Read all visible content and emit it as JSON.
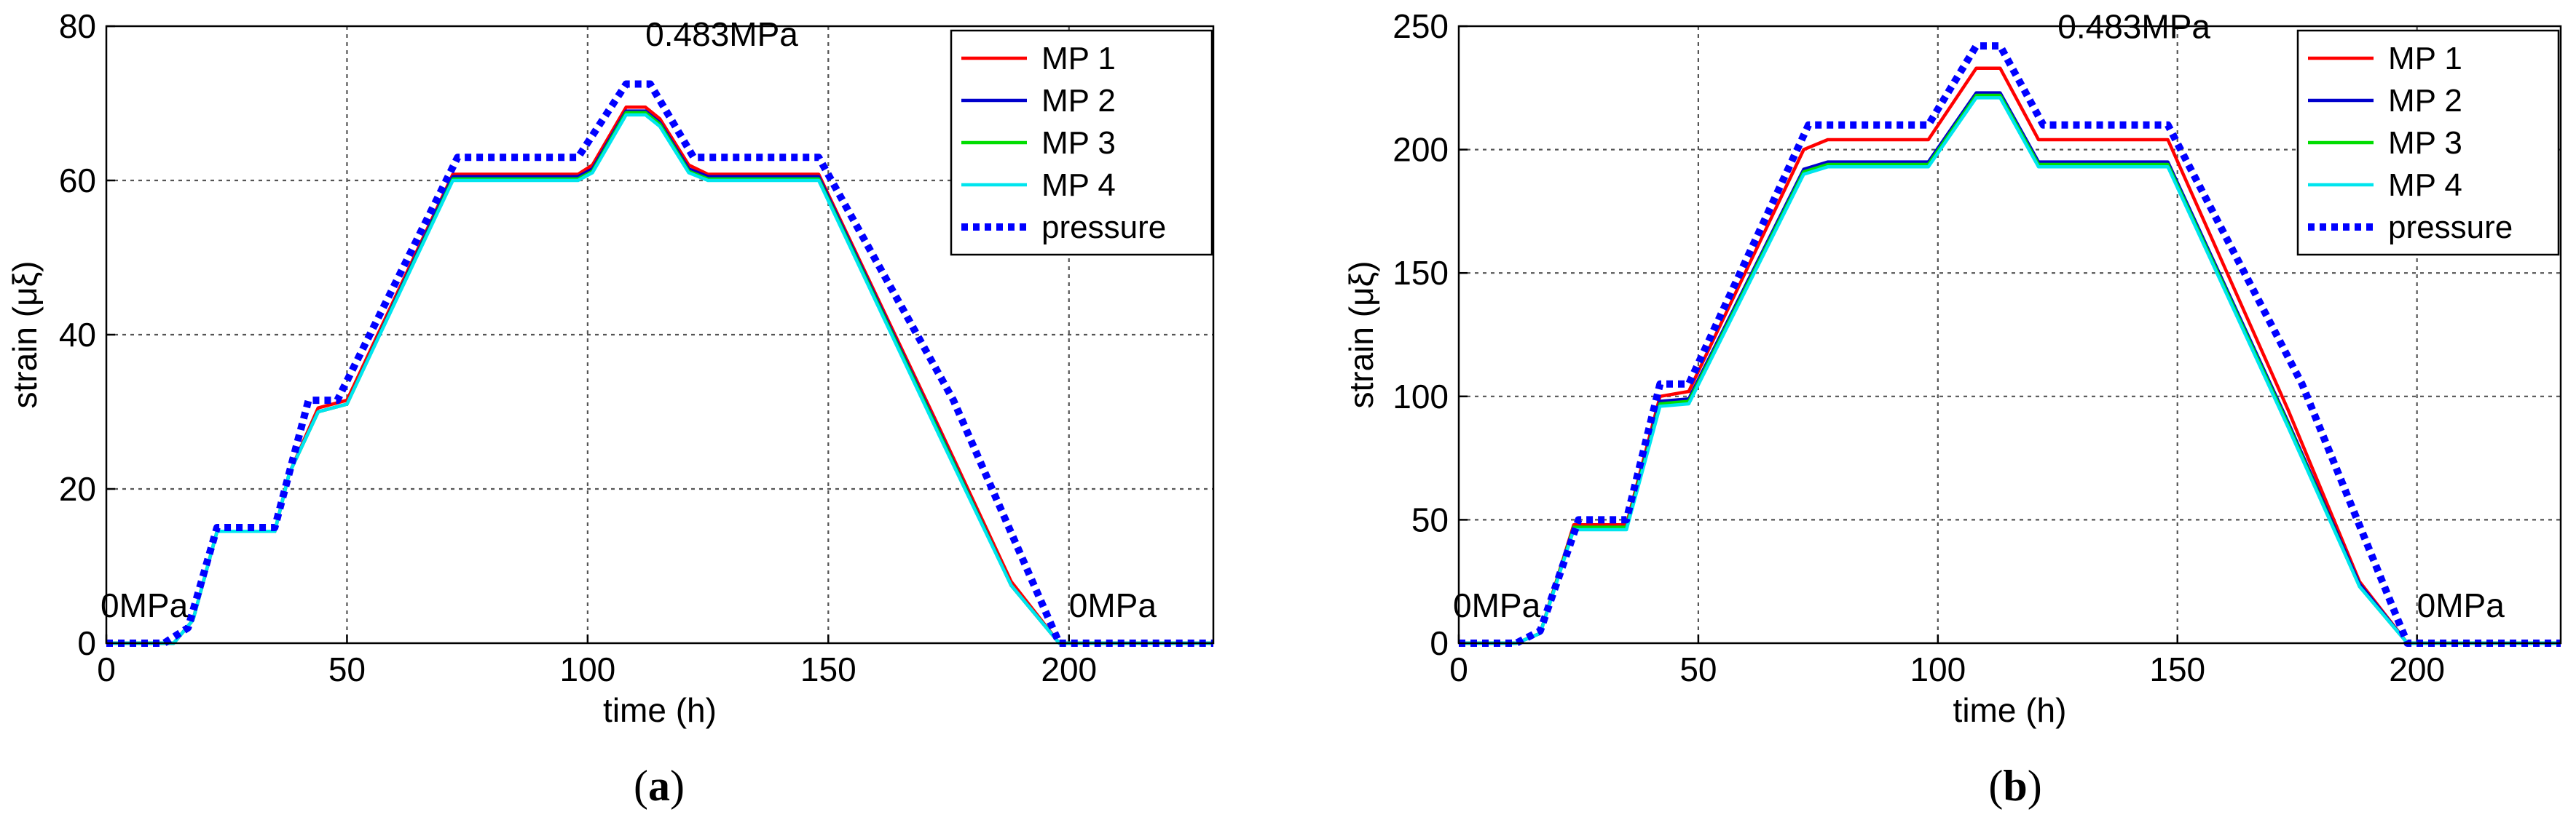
{
  "chart_data": [
    {
      "type": "line",
      "caption_prefix": "(",
      "caption_letter": "a",
      "caption_suffix": ")",
      "xlabel": "time (h)",
      "ylabel": "strain (μξ)",
      "xlim": [
        0,
        230
      ],
      "ylim": [
        0,
        80
      ],
      "xticks": [
        0,
        50,
        100,
        150,
        200
      ],
      "yticks": [
        0,
        20,
        40,
        60,
        80
      ],
      "grid": true,
      "legend_position": "top-right",
      "annotations": [
        {
          "text": "0MPa",
          "x": 0,
          "y": 0
        },
        {
          "text": "0.483MPa",
          "x": 112,
          "y": 72
        },
        {
          "text": "0MPa",
          "x": 200,
          "y": 0
        }
      ],
      "series": [
        {
          "name": "MP 1",
          "color": "#ff0000",
          "style": "solid",
          "x": [
            0,
            14,
            18,
            23,
            35,
            38,
            44,
            50,
            72,
            98,
            101,
            108,
            112,
            115,
            121,
            125,
            148,
            173,
            188,
            198,
            230
          ],
          "y": [
            0,
            0,
            3,
            14.5,
            14.5,
            22,
            30.5,
            31.5,
            60.8,
            60.8,
            62,
            69.5,
            69.5,
            68,
            62,
            60.8,
            60.8,
            28,
            8,
            0,
            0
          ]
        },
        {
          "name": "MP 2",
          "color": "#0000cc",
          "style": "solid",
          "x": [
            0,
            14,
            18,
            23,
            35,
            38,
            44,
            50,
            72,
            98,
            101,
            108,
            112,
            115,
            121,
            125,
            148,
            173,
            188,
            198,
            230
          ],
          "y": [
            0,
            0,
            3,
            14.5,
            14.5,
            22,
            30,
            31,
            60.5,
            60.5,
            61.5,
            69,
            69,
            67.5,
            61.5,
            60.5,
            60.5,
            27.5,
            7.5,
            0,
            0
          ]
        },
        {
          "name": "MP 3",
          "color": "#00dd00",
          "style": "solid",
          "x": [
            0,
            14,
            18,
            23,
            35,
            38,
            44,
            50,
            72,
            98,
            101,
            108,
            112,
            115,
            121,
            125,
            148,
            173,
            188,
            198,
            230
          ],
          "y": [
            0,
            0,
            3,
            14.5,
            14.5,
            22,
            30,
            31,
            60.2,
            60.2,
            61.2,
            68.8,
            68.8,
            67.3,
            61.2,
            60.2,
            60.2,
            27.3,
            7.5,
            0,
            0
          ]
        },
        {
          "name": "MP 4",
          "color": "#00e5ee",
          "style": "solid",
          "x": [
            0,
            14,
            18,
            23,
            35,
            38,
            44,
            50,
            72,
            98,
            101,
            108,
            112,
            115,
            121,
            125,
            148,
            173,
            188,
            198,
            230
          ],
          "y": [
            0,
            0,
            3,
            14.5,
            14.5,
            22,
            30,
            31,
            60,
            60,
            61,
            68.5,
            68.5,
            67,
            61,
            60,
            60,
            27,
            7.5,
            0,
            0
          ]
        },
        {
          "name": "pressure",
          "color": "#0000ff",
          "style": "dotted",
          "x": [
            0,
            12,
            17,
            23,
            35,
            42,
            48,
            73,
            98,
            108,
            113,
            122,
            148,
            176,
            198,
            230
          ],
          "y": [
            0,
            0,
            2,
            15,
            15,
            31.5,
            31.5,
            63,
            63,
            72.5,
            72.5,
            63,
            63,
            31.5,
            0,
            0
          ]
        }
      ]
    },
    {
      "type": "line",
      "caption_prefix": "(",
      "caption_letter": "b",
      "caption_suffix": ")",
      "xlabel": "time (h)",
      "ylabel": "strain (μξ)",
      "xlim": [
        0,
        230
      ],
      "ylim": [
        0,
        250
      ],
      "xticks": [
        0,
        50,
        100,
        150,
        200
      ],
      "yticks": [
        0,
        50,
        100,
        150,
        200,
        250
      ],
      "grid": true,
      "legend_position": "top-right",
      "annotations": [
        {
          "text": "0MPa",
          "x": 0,
          "y": 0
        },
        {
          "text": "0.483MPa",
          "x": 125,
          "y": 228
        },
        {
          "text": "0MPa",
          "x": 200,
          "y": 0
        }
      ],
      "series": [
        {
          "name": "MP 1",
          "color": "#ff0000",
          "style": "solid",
          "x": [
            0,
            12,
            17,
            24,
            35,
            42,
            48,
            72,
            77,
            98,
            108,
            113,
            121,
            148,
            173,
            188,
            198,
            230
          ],
          "y": [
            0,
            0,
            4,
            48,
            48,
            100,
            102,
            200,
            204,
            204,
            233,
            233,
            204,
            204,
            95,
            25,
            0,
            0
          ]
        },
        {
          "name": "MP 2",
          "color": "#0000cc",
          "style": "solid",
          "x": [
            0,
            12,
            17,
            24,
            35,
            42,
            48,
            72,
            77,
            98,
            108,
            113,
            121,
            148,
            173,
            188,
            198,
            230
          ],
          "y": [
            0,
            0,
            4,
            47,
            47,
            98,
            99,
            192,
            195,
            195,
            223,
            223,
            195,
            195,
            90,
            24,
            0,
            0
          ]
        },
        {
          "name": "MP 3",
          "color": "#00dd00",
          "style": "solid",
          "x": [
            0,
            12,
            17,
            24,
            35,
            42,
            48,
            72,
            77,
            98,
            108,
            113,
            121,
            148,
            173,
            188,
            198,
            230
          ],
          "y": [
            0,
            0,
            4,
            47,
            47,
            97,
            98,
            191,
            194,
            194,
            222,
            222,
            194,
            194,
            89,
            23,
            0,
            0
          ]
        },
        {
          "name": "MP 4",
          "color": "#00e5ee",
          "style": "solid",
          "x": [
            0,
            12,
            17,
            24,
            35,
            42,
            48,
            72,
            77,
            98,
            108,
            113,
            121,
            148,
            173,
            188,
            198,
            230
          ],
          "y": [
            0,
            0,
            4,
            46,
            46,
            96,
            97,
            190,
            193,
            193,
            221,
            221,
            193,
            193,
            88,
            23,
            0,
            0
          ]
        },
        {
          "name": "pressure",
          "color": "#0000ff",
          "style": "dotted",
          "x": [
            0,
            12,
            17,
            25,
            35,
            42,
            48,
            73,
            98,
            108,
            113,
            122,
            148,
            176,
            198,
            230
          ],
          "y": [
            0,
            0,
            5,
            50,
            50,
            105,
            105,
            210,
            210,
            242,
            242,
            210,
            210,
            105,
            0,
            0
          ]
        }
      ]
    }
  ]
}
